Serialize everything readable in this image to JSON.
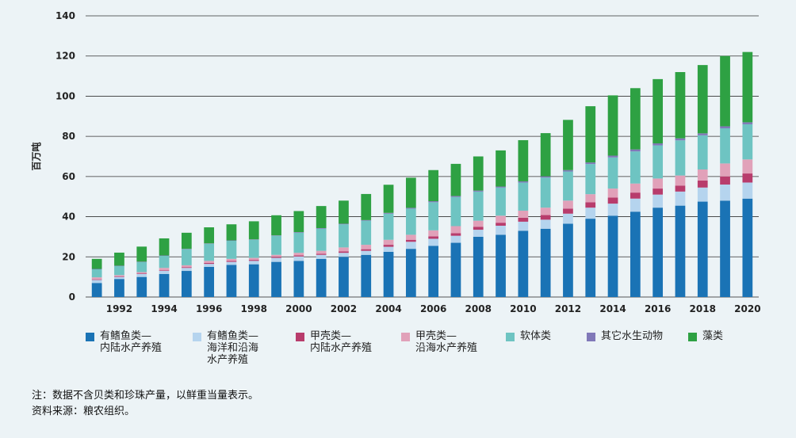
{
  "chart_data": {
    "type": "bar",
    "stacked": true,
    "ylabel": "百万吨",
    "ylim": [
      0,
      140
    ],
    "yticks": [
      0,
      20,
      40,
      60,
      80,
      100,
      120,
      140
    ],
    "grid": true,
    "years": [
      1991,
      1992,
      1993,
      1994,
      1995,
      1996,
      1997,
      1998,
      1999,
      2000,
      2001,
      2002,
      2003,
      2004,
      2005,
      2006,
      2007,
      2008,
      2009,
      2010,
      2011,
      2012,
      2013,
      2014,
      2015,
      2016,
      2017,
      2018,
      2019,
      2020
    ],
    "xticks": [
      1992,
      1994,
      1996,
      1998,
      2000,
      2002,
      2004,
      2006,
      2008,
      2010,
      2012,
      2014,
      2016,
      2018,
      2020
    ],
    "series": [
      {
        "name": "有鳍鱼类—\n内陆水产养殖",
        "color": "#1a73b5",
        "values": [
          7,
          9,
          10,
          11.5,
          13,
          15,
          16,
          16.3,
          17.5,
          18,
          19,
          20,
          21,
          22.5,
          24,
          25.5,
          27,
          30,
          31,
          33,
          34,
          36.5,
          39,
          40.5,
          42.5,
          44.5,
          45.5,
          47.5,
          48,
          49
        ]
      },
      {
        "name": "有鳍鱼类—\n海洋和沿海\n水产养殖",
        "color": "#b5d4ee",
        "values": [
          1.5,
          1,
          1.5,
          1.5,
          1.5,
          1.5,
          1.5,
          1.7,
          2,
          2.2,
          2,
          2,
          2,
          2.5,
          3.5,
          3.5,
          3.5,
          3.5,
          4.5,
          4.5,
          4.5,
          5,
          5.5,
          6,
          6.5,
          6.5,
          7,
          7,
          8,
          8
        ]
      },
      {
        "name": "甲壳类—\n内陆水产养殖",
        "color": "#b83c6c",
        "values": [
          0.3,
          0.3,
          0.3,
          0.3,
          0.4,
          0.5,
          0.5,
          0.5,
          0.5,
          0.5,
          0.5,
          0.7,
          0.8,
          1,
          1,
          1.2,
          1.3,
          1.5,
          1.5,
          2,
          2.3,
          2.5,
          2.7,
          3,
          3,
          3,
          3,
          3.5,
          4,
          4.5
        ]
      },
      {
        "name": "甲壳类—\n沿海水产养殖",
        "color": "#e1a1b9",
        "values": [
          1,
          0.6,
          0.6,
          1.2,
          0.9,
          1,
          1,
          1,
          1,
          1.3,
          1.5,
          2,
          2.2,
          2.5,
          2.5,
          3,
          3.5,
          3,
          3.5,
          3.5,
          3.7,
          4,
          4,
          4.5,
          4.5,
          5,
          5,
          5.5,
          6.5,
          7
        ]
      },
      {
        "name": "软体类",
        "color": "#6ec4c2",
        "values": [
          4,
          4.5,
          5,
          6,
          8,
          8.5,
          9,
          9,
          9.5,
          10,
          11,
          11.5,
          12,
          13,
          13,
          14,
          14.5,
          14.5,
          14,
          14,
          15,
          14.5,
          15,
          15.5,
          16,
          16.5,
          17.5,
          17,
          17.5,
          17.5
        ]
      },
      {
        "name": "其它水生动物",
        "color": "#8078b8",
        "values": [
          0.2,
          0.2,
          0.2,
          0.2,
          0.2,
          0.2,
          0.2,
          0.2,
          0.2,
          0.3,
          0.3,
          0.3,
          0.3,
          0.4,
          0.4,
          0.5,
          0.5,
          0.5,
          0.5,
          0.6,
          0.6,
          0.7,
          0.8,
          0.9,
          1,
          1,
          1,
          1,
          1,
          1
        ]
      },
      {
        "name": "藻类",
        "color": "#2ea143",
        "values": [
          5,
          6.5,
          7.5,
          8.5,
          8,
          8,
          8,
          9,
          10,
          10.5,
          11,
          11.5,
          13,
          14,
          15,
          15.5,
          16,
          17,
          18,
          20.5,
          21.5,
          25,
          28,
          30,
          30.5,
          32,
          33,
          34,
          35,
          35
        ]
      }
    ]
  },
  "notes": {
    "line1": "注：数据不含贝类和珍珠产量，以鲜重当量表示。",
    "line2": "资料来源：粮农组织。"
  }
}
